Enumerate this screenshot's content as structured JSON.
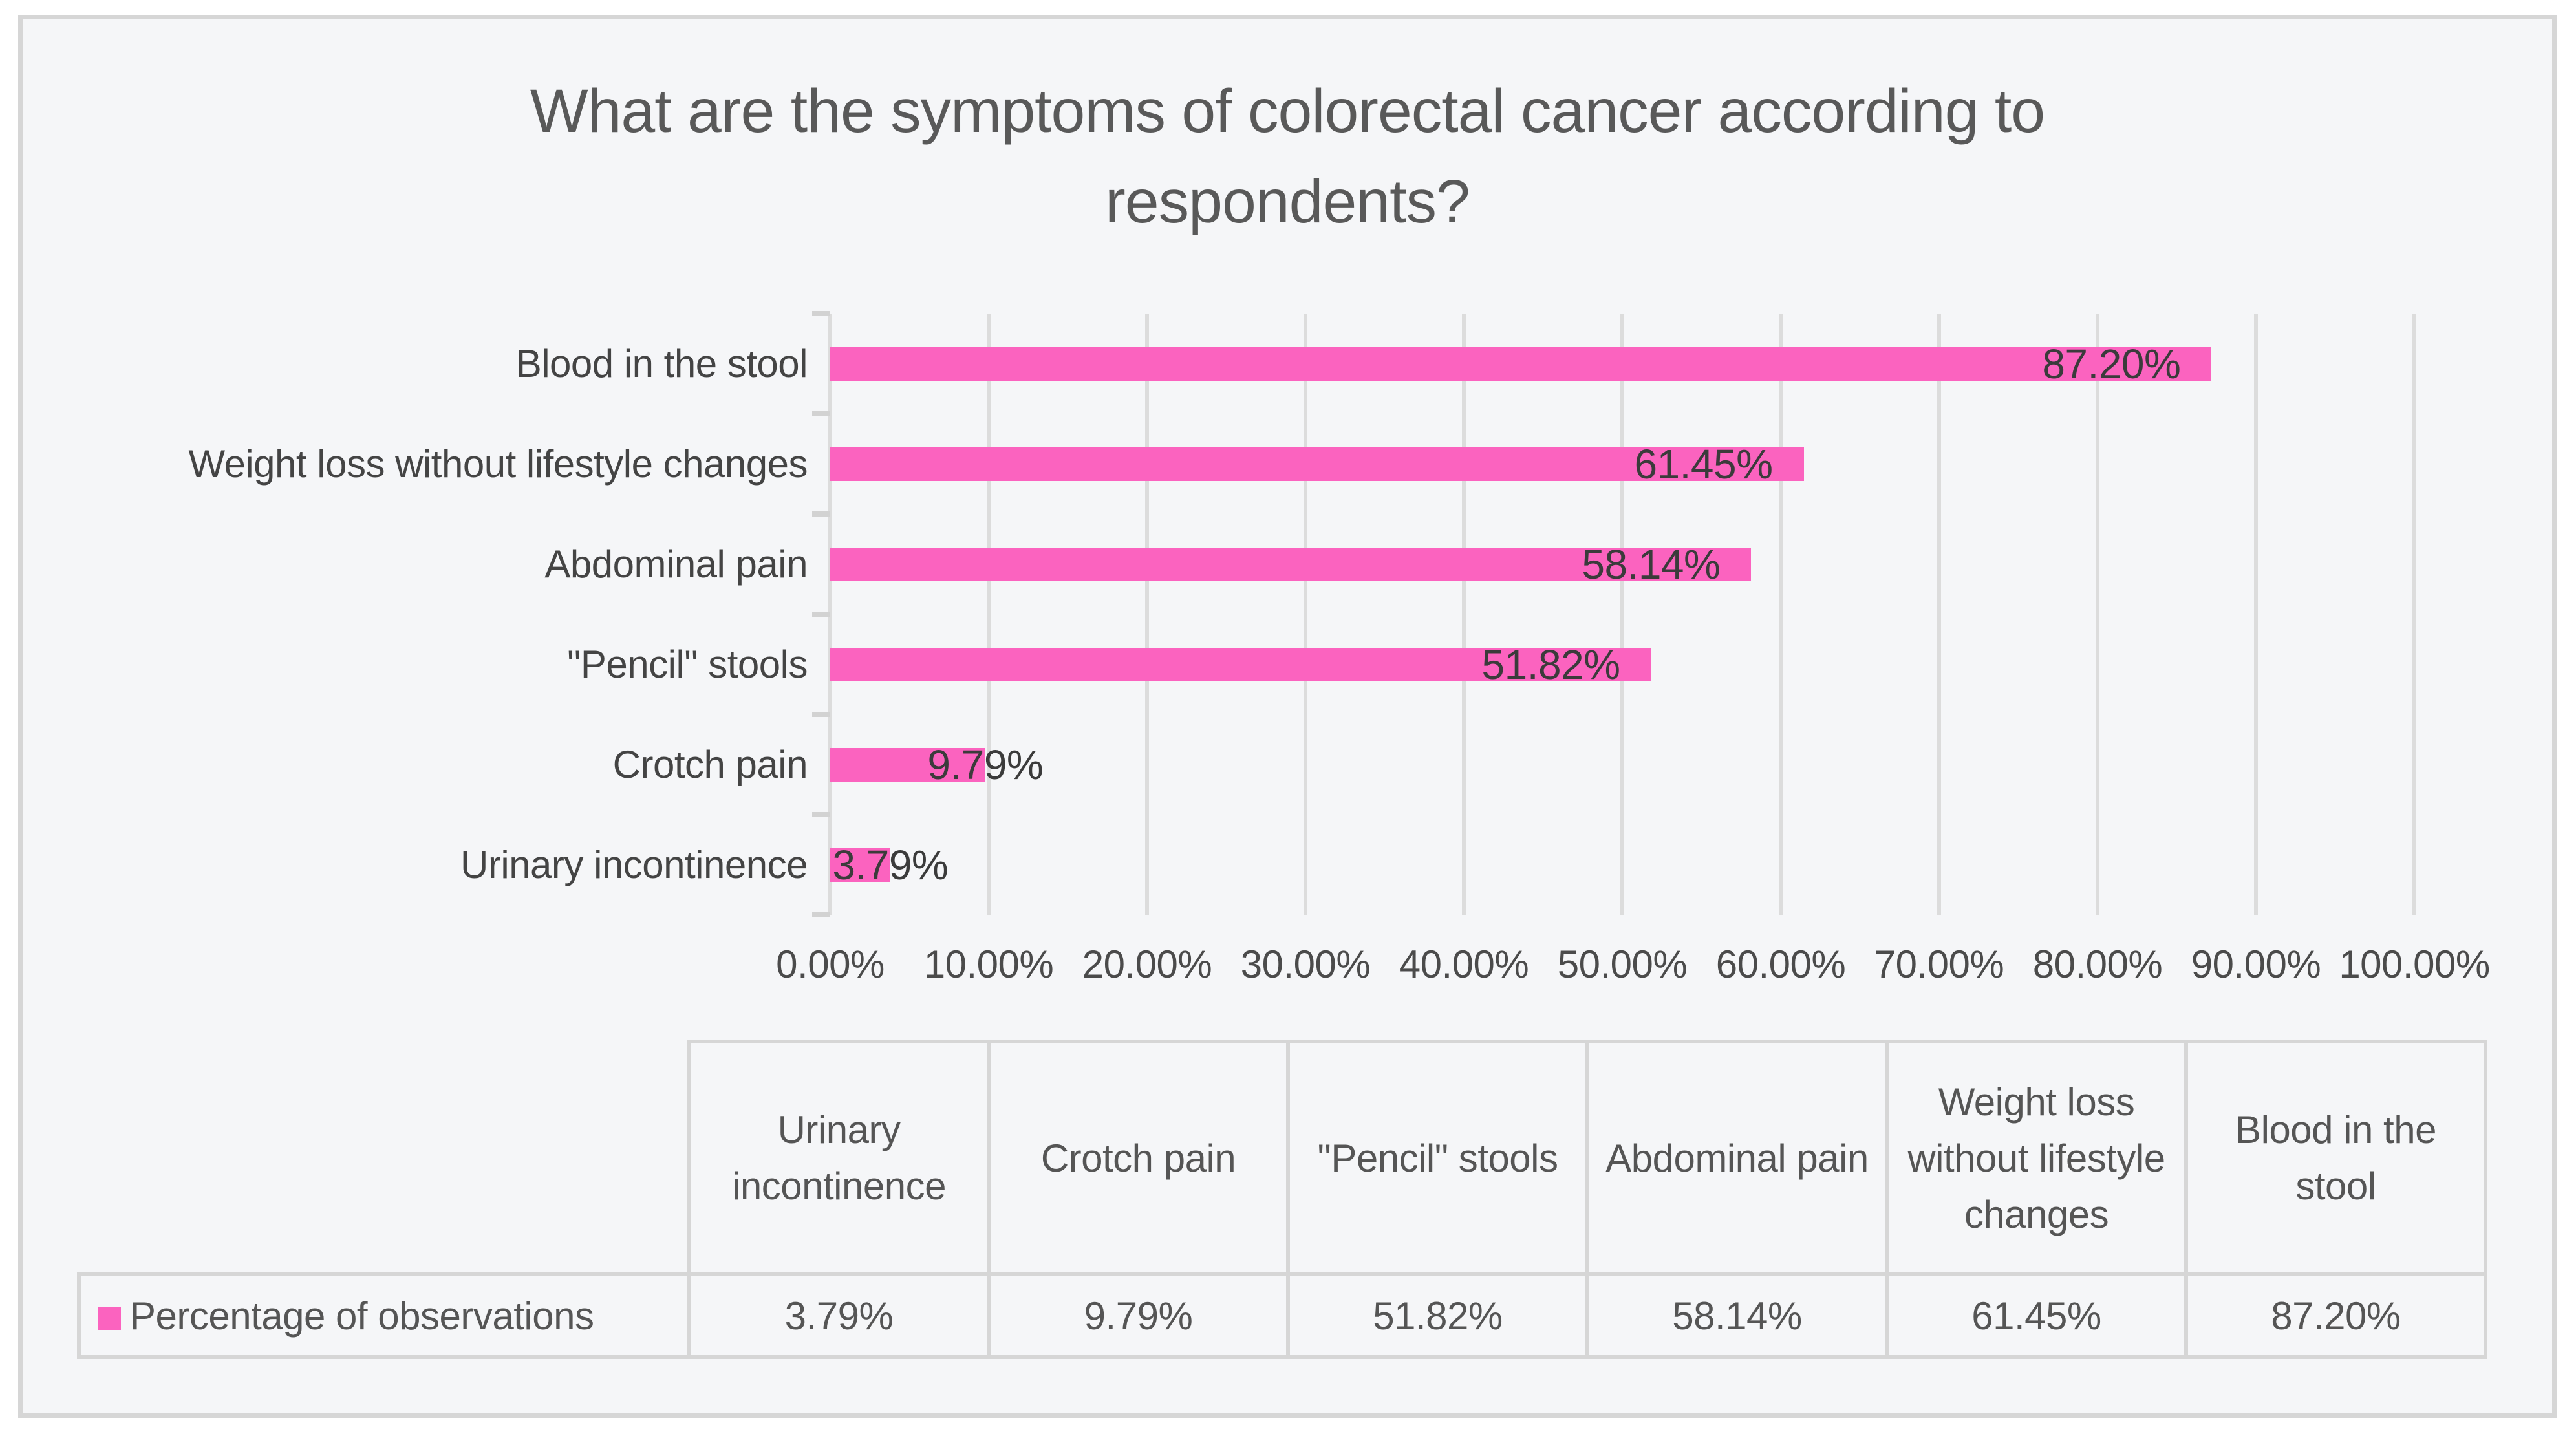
{
  "title": "What are the symptoms of colorectal cancer according to respondents?",
  "colors": {
    "accent_pink": "#FB63BF",
    "frame_background": "#F5F6F8",
    "frame_border": "#D6D6D6",
    "gridline": "#DCDCDC",
    "title_text": "#595959",
    "label_text": "#3B3B3B",
    "table_border": "#D6D6D6"
  },
  "chart_data": {
    "type": "bar",
    "orientation": "horizontal",
    "title": "What are the symptoms of colorectal cancer according to respondents?",
    "series_name": "Percentage of observations",
    "categories": [
      "Blood in the stool",
      "Weight loss without lifestyle changes",
      "Abdominal pain",
      "\"Pencil\" stools",
      "Crotch pain",
      "Urinary incontinence"
    ],
    "values": [
      87.2,
      61.45,
      58.14,
      51.82,
      9.79,
      3.79
    ],
    "value_labels": [
      "87.20%",
      "61.45%",
      "58.14%",
      "51.82%",
      "9.79%",
      "3.79%"
    ],
    "xlim": [
      0,
      100
    ],
    "x_tick_step": 10,
    "x_tick_labels": [
      "0.00%",
      "10.00%",
      "20.00%",
      "30.00%",
      "40.00%",
      "50.00%",
      "60.00%",
      "70.00%",
      "80.00%",
      "90.00%",
      "100.00%"
    ],
    "grid": "vertical",
    "bar_color": "#FB63BF",
    "legend_position": "bottom-table"
  },
  "table": {
    "legend": {
      "label": "Percentage of observations",
      "swatch_color": "#FB63BF"
    },
    "columns": [
      "Urinary incontinence",
      "Crotch pain",
      "\"Pencil\" stools",
      "Abdominal pain",
      "Weight loss without lifestyle changes",
      "Blood in the stool"
    ],
    "row_values": [
      "3.79%",
      "9.79%",
      "51.82%",
      "58.14%",
      "61.45%",
      "87.20%"
    ]
  }
}
